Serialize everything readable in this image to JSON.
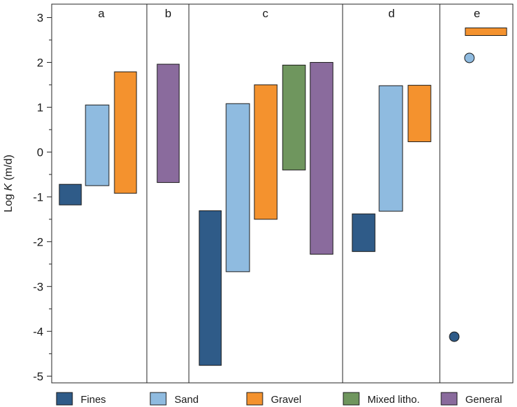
{
  "chart_data": {
    "type": "bar",
    "subtype": "floating-range",
    "title": "",
    "xlabel": "",
    "ylabel_prefix": "Log ",
    "ylabel_italic": "K",
    "ylabel_suffix": " (m/d)",
    "ylim": [
      -5.15,
      3.3
    ],
    "yticks": [
      -5,
      -4,
      -3,
      -2,
      -1,
      0,
      1,
      2,
      3
    ],
    "ytick_labels": [
      "-5",
      "-4",
      "-3",
      "-2",
      "-1",
      "0",
      "1",
      "2",
      "3"
    ],
    "grid": false,
    "legend_position": "bottom",
    "series": [
      {
        "name": "Fines",
        "color": "#2f5b88"
      },
      {
        "name": "Sand",
        "color": "#8fbbe0"
      },
      {
        "name": "Gravel",
        "color": "#f4922e"
      },
      {
        "name": "Mixed litho.",
        "color": "#6f965e"
      },
      {
        "name": "General",
        "color": "#8a6b9d"
      }
    ],
    "panels": [
      {
        "label": "a",
        "ranges": [
          {
            "series": "Fines",
            "low": -1.18,
            "high": -0.72
          },
          {
            "series": "Sand",
            "low": -0.75,
            "high": 1.05
          },
          {
            "series": "Gravel",
            "low": -0.92,
            "high": 1.79
          }
        ]
      },
      {
        "label": "b",
        "ranges": [
          {
            "series": "General",
            "low": -0.68,
            "high": 1.96
          }
        ]
      },
      {
        "label": "c",
        "ranges": [
          {
            "series": "Fines",
            "low": -4.76,
            "high": -1.31
          },
          {
            "series": "Sand",
            "low": -2.67,
            "high": 1.08
          },
          {
            "series": "Gravel",
            "low": -1.5,
            "high": 1.5
          },
          {
            "series": "Mixed litho.",
            "low": -0.4,
            "high": 1.94
          },
          {
            "series": "General",
            "low": -2.28,
            "high": 2.0
          }
        ]
      },
      {
        "label": "d",
        "ranges": [
          {
            "series": "Fines",
            "low": -2.22,
            "high": -1.38
          },
          {
            "series": "Sand",
            "low": -1.32,
            "high": 1.48
          },
          {
            "series": "Gravel",
            "low": 0.23,
            "high": 1.49
          }
        ]
      },
      {
        "label": "e",
        "ranges": [
          {
            "series": "Gravel",
            "low": 2.6,
            "high": 2.77
          }
        ],
        "points": [
          {
            "series": "Sand",
            "value": 2.1
          },
          {
            "series": "Fines",
            "value": -4.12
          }
        ]
      }
    ]
  }
}
